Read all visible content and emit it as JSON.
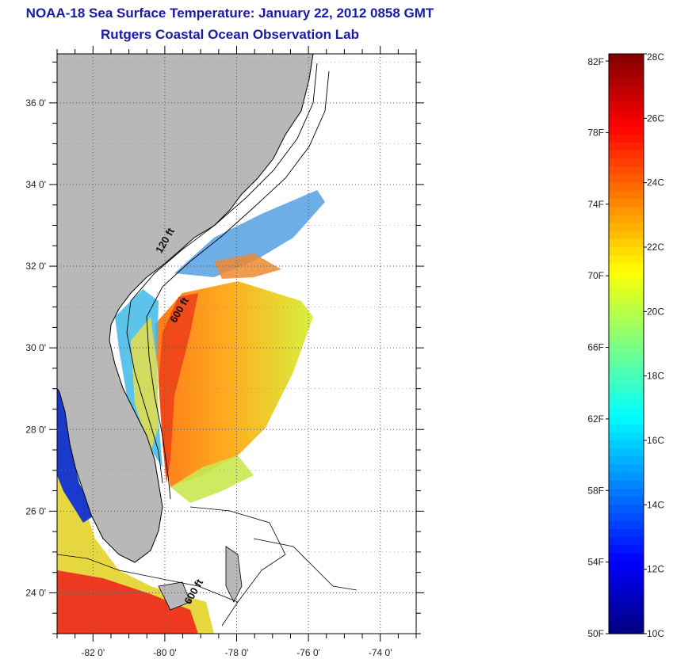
{
  "header": {
    "title": "NOAA-18 Sea Surface Temperature:  January 22, 2012 0858 GMT",
    "subtitle": "Rutgers Coastal Ocean Observation Lab"
  },
  "map": {
    "lat_range": [
      23,
      37.2
    ],
    "lon_range": [
      -83,
      -73
    ],
    "lat_ticks": [
      {
        "value": 24,
        "label": "24 0'"
      },
      {
        "value": 26,
        "label": "26 0'"
      },
      {
        "value": 28,
        "label": "28 0'"
      },
      {
        "value": 30,
        "label": "30 0'"
      },
      {
        "value": 32,
        "label": "32 0'"
      },
      {
        "value": 34,
        "label": "34 0'"
      },
      {
        "value": 36,
        "label": "36 0'"
      }
    ],
    "lon_ticks": [
      {
        "value": -82,
        "label": "-82 0'"
      },
      {
        "value": -80,
        "label": "-80 0'"
      },
      {
        "value": -78,
        "label": "-78 0'"
      },
      {
        "value": -76,
        "label": "-76 0'"
      },
      {
        "value": -74,
        "label": "-74 0'"
      }
    ],
    "contour_labels": [
      {
        "text": "120 ft",
        "lon": -80.1,
        "lat": 32.3
      },
      {
        "text": "600 ft",
        "lon": -79.7,
        "lat": 30.6
      },
      {
        "text": "600 ft",
        "lon": -79.3,
        "lat": 23.7
      }
    ],
    "colors": {
      "land": "#b8b8b8",
      "ocean": "#ffffff",
      "coastline": "#000000"
    }
  },
  "colorbar": {
    "f_labels": [
      "82F",
      "78F",
      "74F",
      "70F",
      "66F",
      "62F",
      "58F",
      "54F",
      "50F"
    ],
    "c_labels": [
      "28C",
      "26C",
      "24C",
      "22C",
      "20C",
      "18C",
      "16C",
      "14C",
      "12C",
      "10C"
    ],
    "range_c": [
      10,
      28
    ]
  }
}
